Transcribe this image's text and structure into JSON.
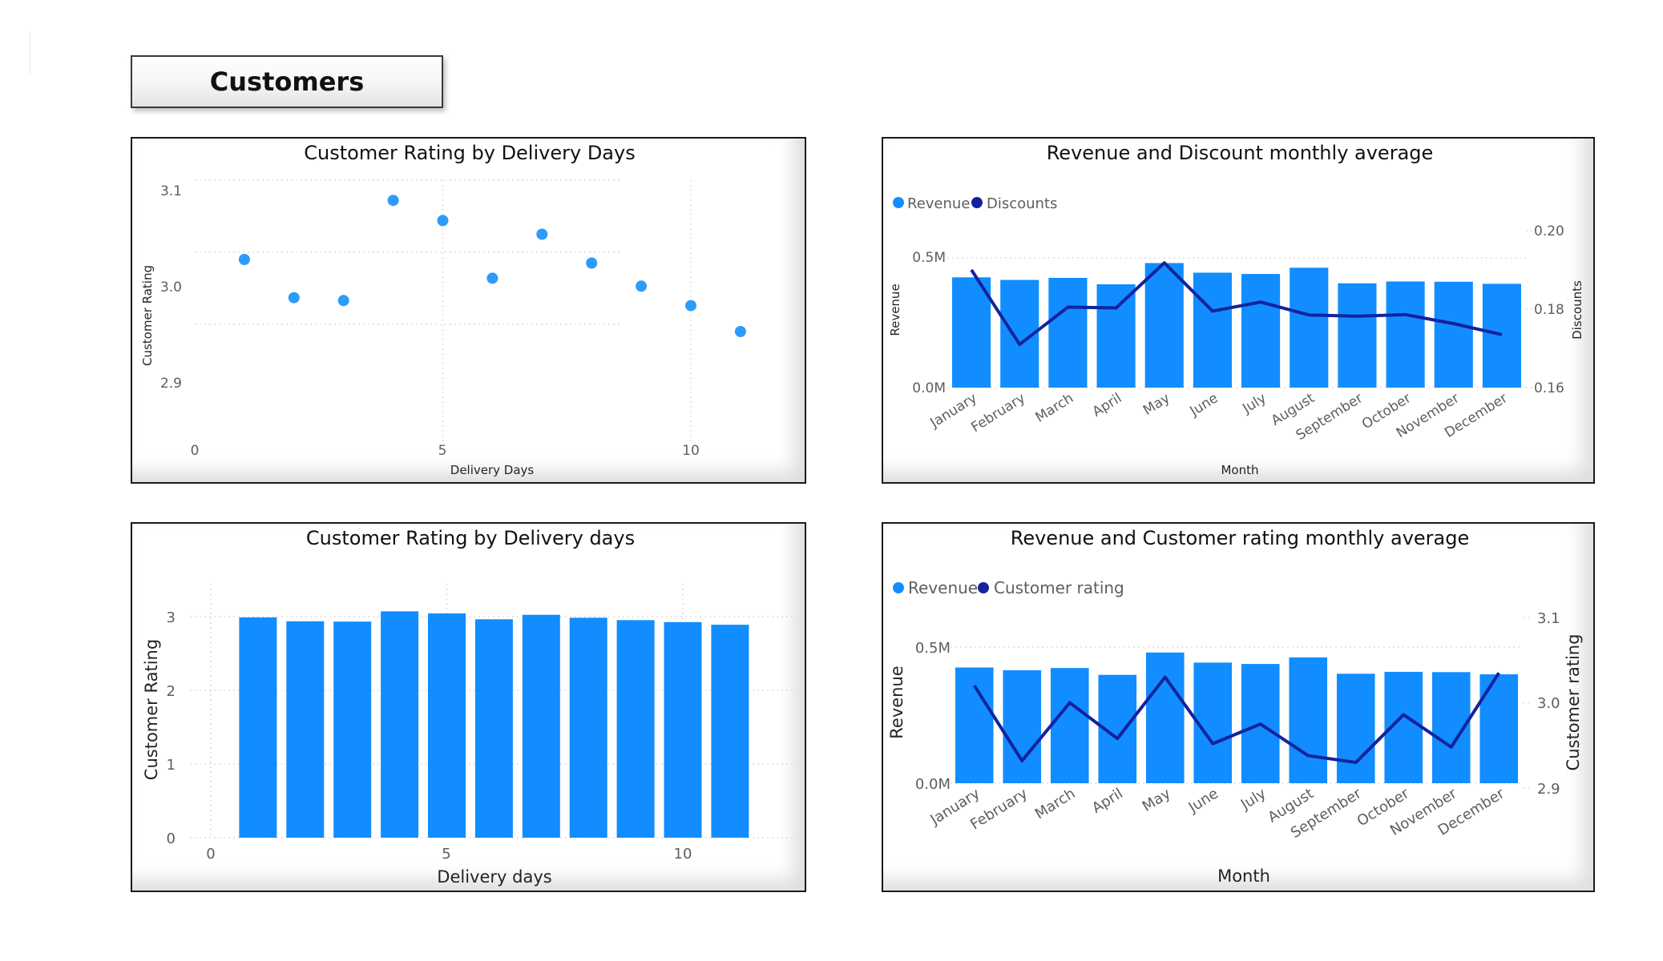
{
  "page": {
    "title": "Customers"
  },
  "colors": {
    "bar": "#118DFF",
    "line": "#12239E",
    "point": "#2D9BFA"
  },
  "charts": {
    "scatter": {
      "title": "Customer Rating by Delivery Days",
      "xlabel": "Delivery Days",
      "ylabel": "Customer Rating",
      "x_ticks": [
        "0",
        "5",
        "10"
      ],
      "y_ticks": [
        "2.9",
        "3.0",
        "3.1"
      ]
    },
    "rev_disc": {
      "title": "Revenue and Discount monthly average",
      "xlabel": "Month",
      "ylabel": "Revenue",
      "y2label": "Discounts",
      "legend": [
        "Revenue",
        "Discounts"
      ],
      "y_ticks": [
        "0.0M",
        "0.5M"
      ],
      "y2_ticks": [
        "0.16",
        "0.18",
        "0.20"
      ]
    },
    "bar_rating": {
      "title": "Customer Rating by Delivery days",
      "xlabel": "Delivery days",
      "ylabel": "Customer Rating",
      "x_ticks": [
        "0",
        "5",
        "10"
      ],
      "y_ticks": [
        "0",
        "1",
        "2",
        "3"
      ]
    },
    "rev_rating": {
      "title": "Revenue and Customer rating monthly average",
      "xlabel": "Month",
      "ylabel": "Revenue",
      "y2label": "Customer rating",
      "legend": [
        "Revenue",
        "Customer rating"
      ],
      "y_ticks": [
        "0.0M",
        "0.5M"
      ],
      "y2_ticks": [
        "2.9",
        "3.0",
        "3.1"
      ]
    }
  },
  "chart_data": [
    {
      "type": "scatter",
      "title": "Customer Rating by Delivery Days",
      "xlabel": "Delivery Days",
      "ylabel": "Customer Rating",
      "xlim": [
        0,
        12
      ],
      "ylim": [
        2.84,
        3.1
      ],
      "x": [
        1,
        2,
        3,
        4,
        5,
        6,
        7,
        8,
        9,
        10,
        11
      ],
      "y": [
        2.99,
        2.937,
        2.933,
        3.072,
        3.044,
        2.964,
        3.025,
        2.985,
        2.953,
        2.926,
        2.89
      ],
      "grid": true
    },
    {
      "type": "bar",
      "title": "Revenue and Discount monthly average",
      "xlabel": "Month",
      "ylabel": "Revenue",
      "y2label": "Discounts",
      "categories": [
        "January",
        "February",
        "March",
        "April",
        "May",
        "June",
        "July",
        "August",
        "September",
        "October",
        "November",
        "December"
      ],
      "ylim": [
        0,
        0.5
      ],
      "y2lim": [
        0.16,
        0.2
      ],
      "legend": "top-left",
      "series": [
        {
          "name": "Revenue",
          "type": "bar",
          "axis": "left",
          "values": [
            0.425,
            0.415,
            0.423,
            0.398,
            0.48,
            0.443,
            0.438,
            0.462,
            0.402,
            0.409,
            0.408,
            0.4
          ]
        },
        {
          "name": "Discounts",
          "type": "line",
          "axis": "right",
          "values": [
            0.19,
            0.171,
            0.1805,
            0.1803,
            0.1918,
            0.1795,
            0.1818,
            0.1785,
            0.1782,
            0.1786,
            0.1763,
            0.1735
          ]
        }
      ]
    },
    {
      "type": "bar",
      "title": "Customer Rating by Delivery days",
      "xlabel": "Delivery days",
      "ylabel": "Customer Rating",
      "categories": [
        1,
        2,
        3,
        4,
        5,
        6,
        7,
        8,
        9,
        10,
        11
      ],
      "values": [
        2.99,
        2.937,
        2.933,
        3.072,
        3.044,
        2.964,
        3.025,
        2.985,
        2.953,
        2.926,
        2.89
      ],
      "xlim": [
        0,
        12
      ],
      "ylim": [
        0,
        3.4
      ]
    },
    {
      "type": "bar",
      "title": "Revenue and Customer rating monthly average",
      "xlabel": "Month",
      "ylabel": "Revenue",
      "y2label": "Customer rating",
      "categories": [
        "January",
        "February",
        "March",
        "April",
        "May",
        "June",
        "July",
        "August",
        "September",
        "October",
        "November",
        "December"
      ],
      "ylim": [
        0,
        0.5
      ],
      "y2lim": [
        2.9,
        3.1
      ],
      "legend": "top-left",
      "series": [
        {
          "name": "Revenue",
          "type": "bar",
          "axis": "left",
          "values": [
            0.425,
            0.415,
            0.423,
            0.398,
            0.48,
            0.443,
            0.438,
            0.462,
            0.402,
            0.409,
            0.408,
            0.4
          ]
        },
        {
          "name": "Customer rating",
          "type": "line",
          "axis": "right",
          "values": [
            3.02,
            2.932,
            3.0,
            2.958,
            3.03,
            2.952,
            2.975,
            2.938,
            2.93,
            2.986,
            2.948,
            3.035
          ]
        }
      ]
    }
  ]
}
